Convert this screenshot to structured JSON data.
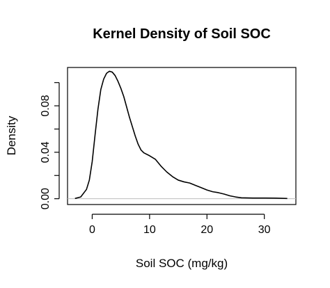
{
  "chart_data": {
    "type": "line",
    "title": "Kernel Density of Soil SOC",
    "xlabel": "Soil SOC (mg/kg)",
    "ylabel": "Density",
    "xlim": [
      -4.3,
      35.5
    ],
    "ylim": [
      -0.005,
      0.113
    ],
    "x_ticks": [
      0,
      10,
      20,
      30
    ],
    "x_tick_labels": [
      "0",
      "10",
      "20",
      "30"
    ],
    "y_ticks": [
      0.0,
      0.02,
      0.04,
      0.06,
      0.08,
      0.1
    ],
    "y_tick_labels": [
      "0.00",
      "",
      "0.04",
      "",
      "0.08",
      ""
    ],
    "grid": false,
    "baseline": 0,
    "series": [
      {
        "color": "#000000",
        "x": [
          -3.0,
          -2.0,
          -1.0,
          -0.5,
          0.0,
          0.5,
          1.0,
          1.5,
          2.0,
          2.5,
          3.0,
          3.5,
          4.0,
          4.5,
          5.0,
          5.5,
          6.0,
          6.5,
          7.0,
          7.5,
          8.0,
          8.5,
          9.0,
          10.0,
          11.0,
          12.0,
          13.0,
          14.0,
          15.0,
          16.0,
          17.0,
          18.0,
          19.0,
          20.0,
          21.0,
          22.0,
          23.0,
          24.0,
          25.0,
          26.0,
          28.0,
          30.0,
          32.0,
          34.0
        ],
        "y": [
          0.0002,
          0.0015,
          0.008,
          0.016,
          0.032,
          0.055,
          0.077,
          0.094,
          0.103,
          0.108,
          0.1098,
          0.109,
          0.106,
          0.101,
          0.095,
          0.088,
          0.079,
          0.07,
          0.062,
          0.054,
          0.047,
          0.042,
          0.0395,
          0.037,
          0.034,
          0.028,
          0.023,
          0.019,
          0.016,
          0.0145,
          0.0135,
          0.0115,
          0.0095,
          0.0075,
          0.006,
          0.0052,
          0.004,
          0.0025,
          0.0015,
          0.0008,
          0.0006,
          0.0006,
          0.0005,
          0.0002
        ]
      }
    ]
  }
}
